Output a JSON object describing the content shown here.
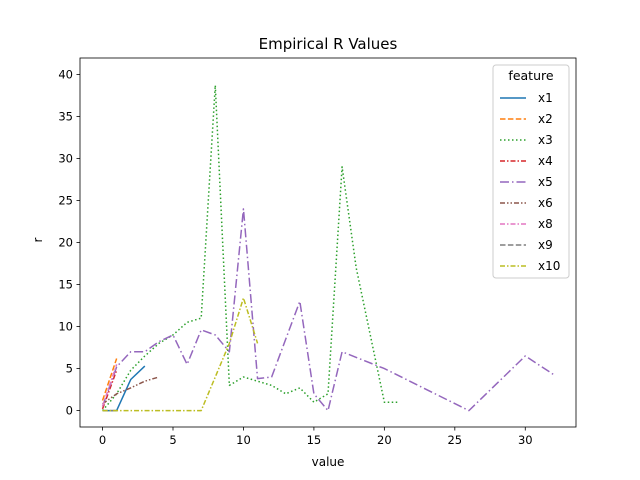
{
  "chart_data": {
    "type": "line",
    "title": "Empirical R Values",
    "xlabel": "value",
    "ylabel": "r",
    "xlim": [
      -1.6,
      33.6
    ],
    "ylim": [
      -1.95,
      41.95
    ],
    "xticks": [
      0,
      5,
      10,
      15,
      20,
      25,
      30
    ],
    "yticks": [
      0,
      5,
      10,
      15,
      20,
      25,
      30,
      35,
      40
    ],
    "grid": false,
    "legend": {
      "title": "feature",
      "placement": "top-right"
    },
    "series": [
      {
        "name": "x1",
        "color": "#1f77b4",
        "dash": "solid",
        "x": [
          0,
          1,
          2,
          3
        ],
        "y": [
          0,
          0,
          3.7,
          5.3
        ]
      },
      {
        "name": "x2",
        "color": "#ff7f0e",
        "dash": "dashed",
        "x": [
          0,
          1
        ],
        "y": [
          1.2,
          6.2
        ]
      },
      {
        "name": "x3",
        "color": "#2ca02c",
        "dash": "dotted",
        "x": [
          0,
          1,
          2,
          3,
          4,
          5,
          6,
          7,
          8,
          9,
          10,
          11,
          12,
          13,
          14,
          15,
          16,
          17,
          18,
          19,
          20,
          21
        ],
        "y": [
          0,
          2.0,
          4.8,
          6.5,
          8.0,
          9.0,
          10.5,
          11.0,
          38.7,
          3.0,
          4.0,
          3.5,
          3.0,
          2.0,
          2.7,
          1.0,
          2.0,
          29.0,
          17.0,
          9.0,
          1.0,
          1.0
        ]
      },
      {
        "name": "x4",
        "color": "#d62728",
        "dash": "dashdot",
        "x": [
          0,
          1
        ],
        "y": [
          0.2,
          4.8
        ]
      },
      {
        "name": "x5",
        "color": "#9467bd",
        "dash": "longdashdot",
        "x": [
          0,
          1,
          2,
          3,
          4,
          5,
          6,
          7,
          8,
          9,
          10,
          11,
          12,
          13,
          14,
          15,
          16,
          17,
          20,
          26,
          30,
          32
        ],
        "y": [
          0.5,
          5.2,
          7.0,
          7.0,
          8.2,
          9.0,
          5.5,
          9.6,
          9.0,
          7.0,
          24.0,
          3.8,
          4.0,
          8.5,
          13.0,
          2.0,
          0.0,
          7.0,
          5.0,
          0.0,
          6.5,
          4.3
        ]
      },
      {
        "name": "x6",
        "color": "#8c564b",
        "dash": "dashdotdot",
        "x": [
          0,
          1,
          2,
          3,
          4
        ],
        "y": [
          0.8,
          2.0,
          2.7,
          3.5,
          4.0
        ]
      },
      {
        "name": "x8",
        "color": "#e377c2",
        "dash": "dashdot",
        "x": [
          0,
          1
        ],
        "y": [
          0.5,
          5.5
        ]
      },
      {
        "name": "x9",
        "color": "#7f7f7f",
        "dash": "dashed",
        "x": [
          0,
          1
        ],
        "y": [
          0,
          0
        ]
      },
      {
        "name": "x10",
        "color": "#bcbd22",
        "dash": "dashdot",
        "x": [
          0,
          1,
          2,
          3,
          4,
          5,
          6,
          7,
          8,
          9,
          10,
          11
        ],
        "y": [
          0,
          0,
          0,
          0,
          0,
          0,
          0,
          0,
          4.0,
          8.0,
          13.4,
          8.0
        ]
      }
    ]
  }
}
